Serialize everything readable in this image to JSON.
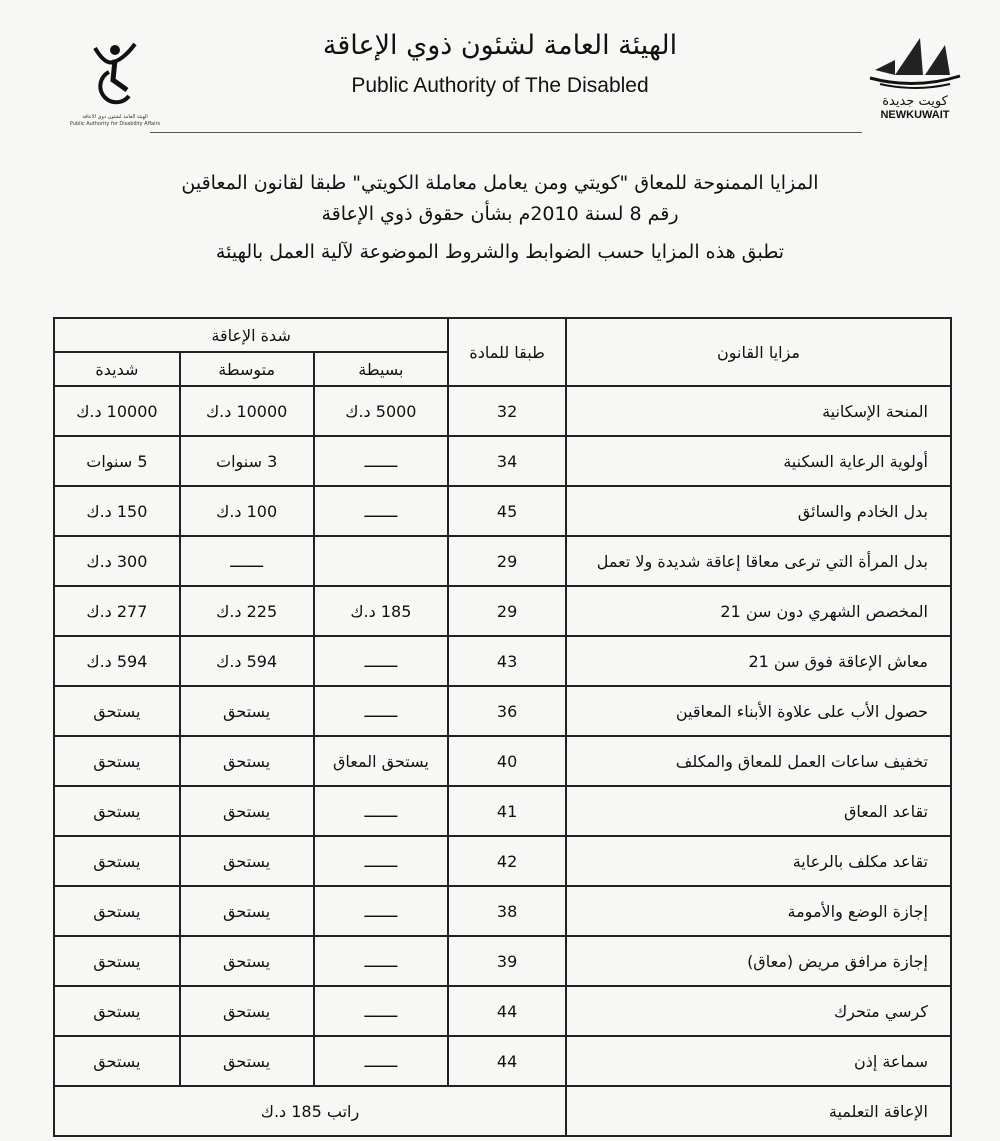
{
  "header": {
    "org_ar": "الهيئة العامة لشئون ذوي الإعاقة",
    "org_en": "Public Authority of The Disabled",
    "left_logo": {
      "caption_ar": "الهيئة العامة لشئون ذوي الاعاقة",
      "caption_en": "Public Authority for Disability Affairs"
    },
    "right_logo": {
      "caption_ar": "كويت جديدة",
      "caption_en": "NEWKUWAIT"
    }
  },
  "title": {
    "line1": "المزايا الممنوحة للمعاق \"كويتي ومن يعامل معاملة الكويتي\" طبقا لقانون المعاقين",
    "line2": "رقم 8 لسنة 2010م بشأن حقوق ذوي الإعاقة",
    "line3": "تطبق هذه المزايا حسب الضوابط والشروط الموضوعة لآلية العمل بالهيئة"
  },
  "table": {
    "headers": {
      "benefit": "مزايا القانون",
      "article": "طبقا للمادة",
      "severity": "شدة الإعاقة",
      "mild": "بسيطة",
      "moderate": "متوسطة",
      "severe": "شديدة"
    },
    "rows": [
      {
        "benefit": "المنحة الإسكانية",
        "article": "32",
        "mild": "5000 د.ك",
        "moderate": "10000 د.ك",
        "severe": "10000 د.ك"
      },
      {
        "benefit": "أولوية الرعاية السكنية",
        "article": "34",
        "mild": "ـــــــ",
        "moderate": "3 سنوات",
        "severe": "5 سنوات"
      },
      {
        "benefit": "بدل الخادم والسائق",
        "article": "45",
        "mild": "ـــــــ",
        "moderate": "100 د.ك",
        "severe": "150 د.ك"
      },
      {
        "benefit": "بدل المرأة التي ترعى معاقا إعاقة شديدة ولا تعمل",
        "article": "29",
        "mild": "",
        "moderate": "ـــــــ",
        "severe": "300 د.ك"
      },
      {
        "benefit": "المخصص الشهري دون سن 21",
        "article": "29",
        "mild": "185 د.ك",
        "moderate": "225 د.ك",
        "severe": "277 د.ك"
      },
      {
        "benefit": "معاش الإعاقة فوق سن 21",
        "article": "43",
        "mild": "ـــــــ",
        "moderate": "594 د.ك",
        "severe": "594 د.ك"
      },
      {
        "benefit": "حصول الأب على علاوة الأبناء المعاقين",
        "article": "36",
        "mild": "ـــــــ",
        "moderate": "يستحق",
        "severe": "يستحق"
      },
      {
        "benefit": "تخفيف ساعات العمل للمعاق والمكلف",
        "article": "40",
        "mild": "يستحق المعاق",
        "moderate": "يستحق",
        "severe": "يستحق"
      },
      {
        "benefit": "تقاعد المعاق",
        "article": "41",
        "mild": "ـــــــ",
        "moderate": "يستحق",
        "severe": "يستحق"
      },
      {
        "benefit": "تقاعد مكلف بالرعاية",
        "article": "42",
        "mild": "ـــــــ",
        "moderate": "يستحق",
        "severe": "يستحق"
      },
      {
        "benefit": "إجازة الوضع والأمومة",
        "article": "38",
        "mild": "ـــــــ",
        "moderate": "يستحق",
        "severe": "يستحق"
      },
      {
        "benefit": "إجازة مرافق مريض (معاق)",
        "article": "39",
        "mild": "ـــــــ",
        "moderate": "يستحق",
        "severe": "يستحق"
      },
      {
        "benefit": "كرسي متحرك",
        "article": "44",
        "mild": "ـــــــ",
        "moderate": "يستحق",
        "severe": "يستحق"
      },
      {
        "benefit": "سماعة إذن",
        "article": "44",
        "mild": "ـــــــ",
        "moderate": "يستحق",
        "severe": "يستحق"
      }
    ],
    "last_row": {
      "benefit": "الإعاقة التعلمية",
      "value": "راتب 185 د.ك"
    }
  }
}
